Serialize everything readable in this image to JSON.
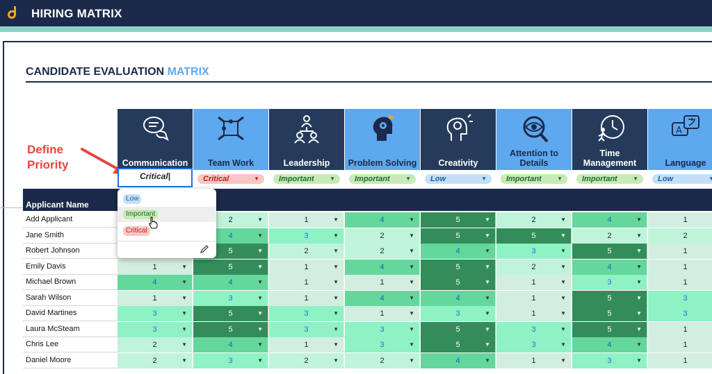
{
  "app": {
    "title": "HIRING MATRIX"
  },
  "page": {
    "title_main": "CANDIDATE EVALUATION",
    "title_accent": "MATRIX"
  },
  "annotation": {
    "line1": "Define",
    "line2": "Priority"
  },
  "colors": {
    "navy": "#1b2a4a",
    "dark_header": "#253b5c",
    "light_header": "#5ea8ef",
    "teal": "#8bd3c7",
    "annotation_red": "#e8453c"
  },
  "criteria": [
    {
      "label": "Communication",
      "icon": "chat-bubbles-icon",
      "priority": "Critical"
    },
    {
      "label": "Team Work",
      "icon": "puzzle-hands-icon",
      "priority": "Critical"
    },
    {
      "label": "Leadership",
      "icon": "people-hierarchy-icon",
      "priority": "Important"
    },
    {
      "label": "Problem Solving",
      "icon": "head-gears-icon",
      "priority": "Important"
    },
    {
      "label": "Creativity",
      "icon": "head-lightbulb-icon",
      "priority": "Low"
    },
    {
      "label": "Attention to Details",
      "icon": "eye-magnifier-icon",
      "priority": "Important"
    },
    {
      "label": "Time Management",
      "icon": "clock-running-icon",
      "priority": "Important"
    },
    {
      "label": "Language",
      "icon": "translate-bubbles-icon",
      "priority": "Low"
    }
  ],
  "editing_value": "Critical",
  "table": {
    "applicant_header": "Applicant Name"
  },
  "dropdown": {
    "options": [
      "Low",
      "Important",
      "Critical"
    ],
    "hovered": "Important",
    "edit_icon": "pencil-icon"
  },
  "applicants": [
    {
      "name": "Add Applicant",
      "scores": [
        null,
        2,
        1,
        4,
        5,
        2,
        4,
        1
      ]
    },
    {
      "name": "Jane Smith",
      "scores": [
        null,
        4,
        3,
        2,
        5,
        5,
        2,
        2
      ]
    },
    {
      "name": "Robert Johnson",
      "scores": [
        null,
        5,
        2,
        2,
        4,
        3,
        5,
        1
      ]
    },
    {
      "name": "Emily Davis",
      "scores": [
        1,
        5,
        1,
        4,
        5,
        2,
        4,
        1
      ]
    },
    {
      "name": "Michael Brown",
      "scores": [
        4,
        4,
        1,
        1,
        5,
        1,
        3,
        1
      ]
    },
    {
      "name": "Sarah Wilson",
      "scores": [
        1,
        3,
        1,
        4,
        4,
        1,
        5,
        3
      ]
    },
    {
      "name": "David Martines",
      "scores": [
        3,
        5,
        3,
        1,
        3,
        1,
        5,
        3
      ]
    },
    {
      "name": "Laura McSteam",
      "scores": [
        3,
        5,
        3,
        3,
        5,
        3,
        5,
        1
      ]
    },
    {
      "name": "Chris Lee",
      "scores": [
        2,
        4,
        1,
        3,
        5,
        3,
        4,
        1
      ]
    },
    {
      "name": "Daniel Moore",
      "scores": [
        2,
        3,
        2,
        2,
        4,
        1,
        3,
        1
      ]
    }
  ]
}
